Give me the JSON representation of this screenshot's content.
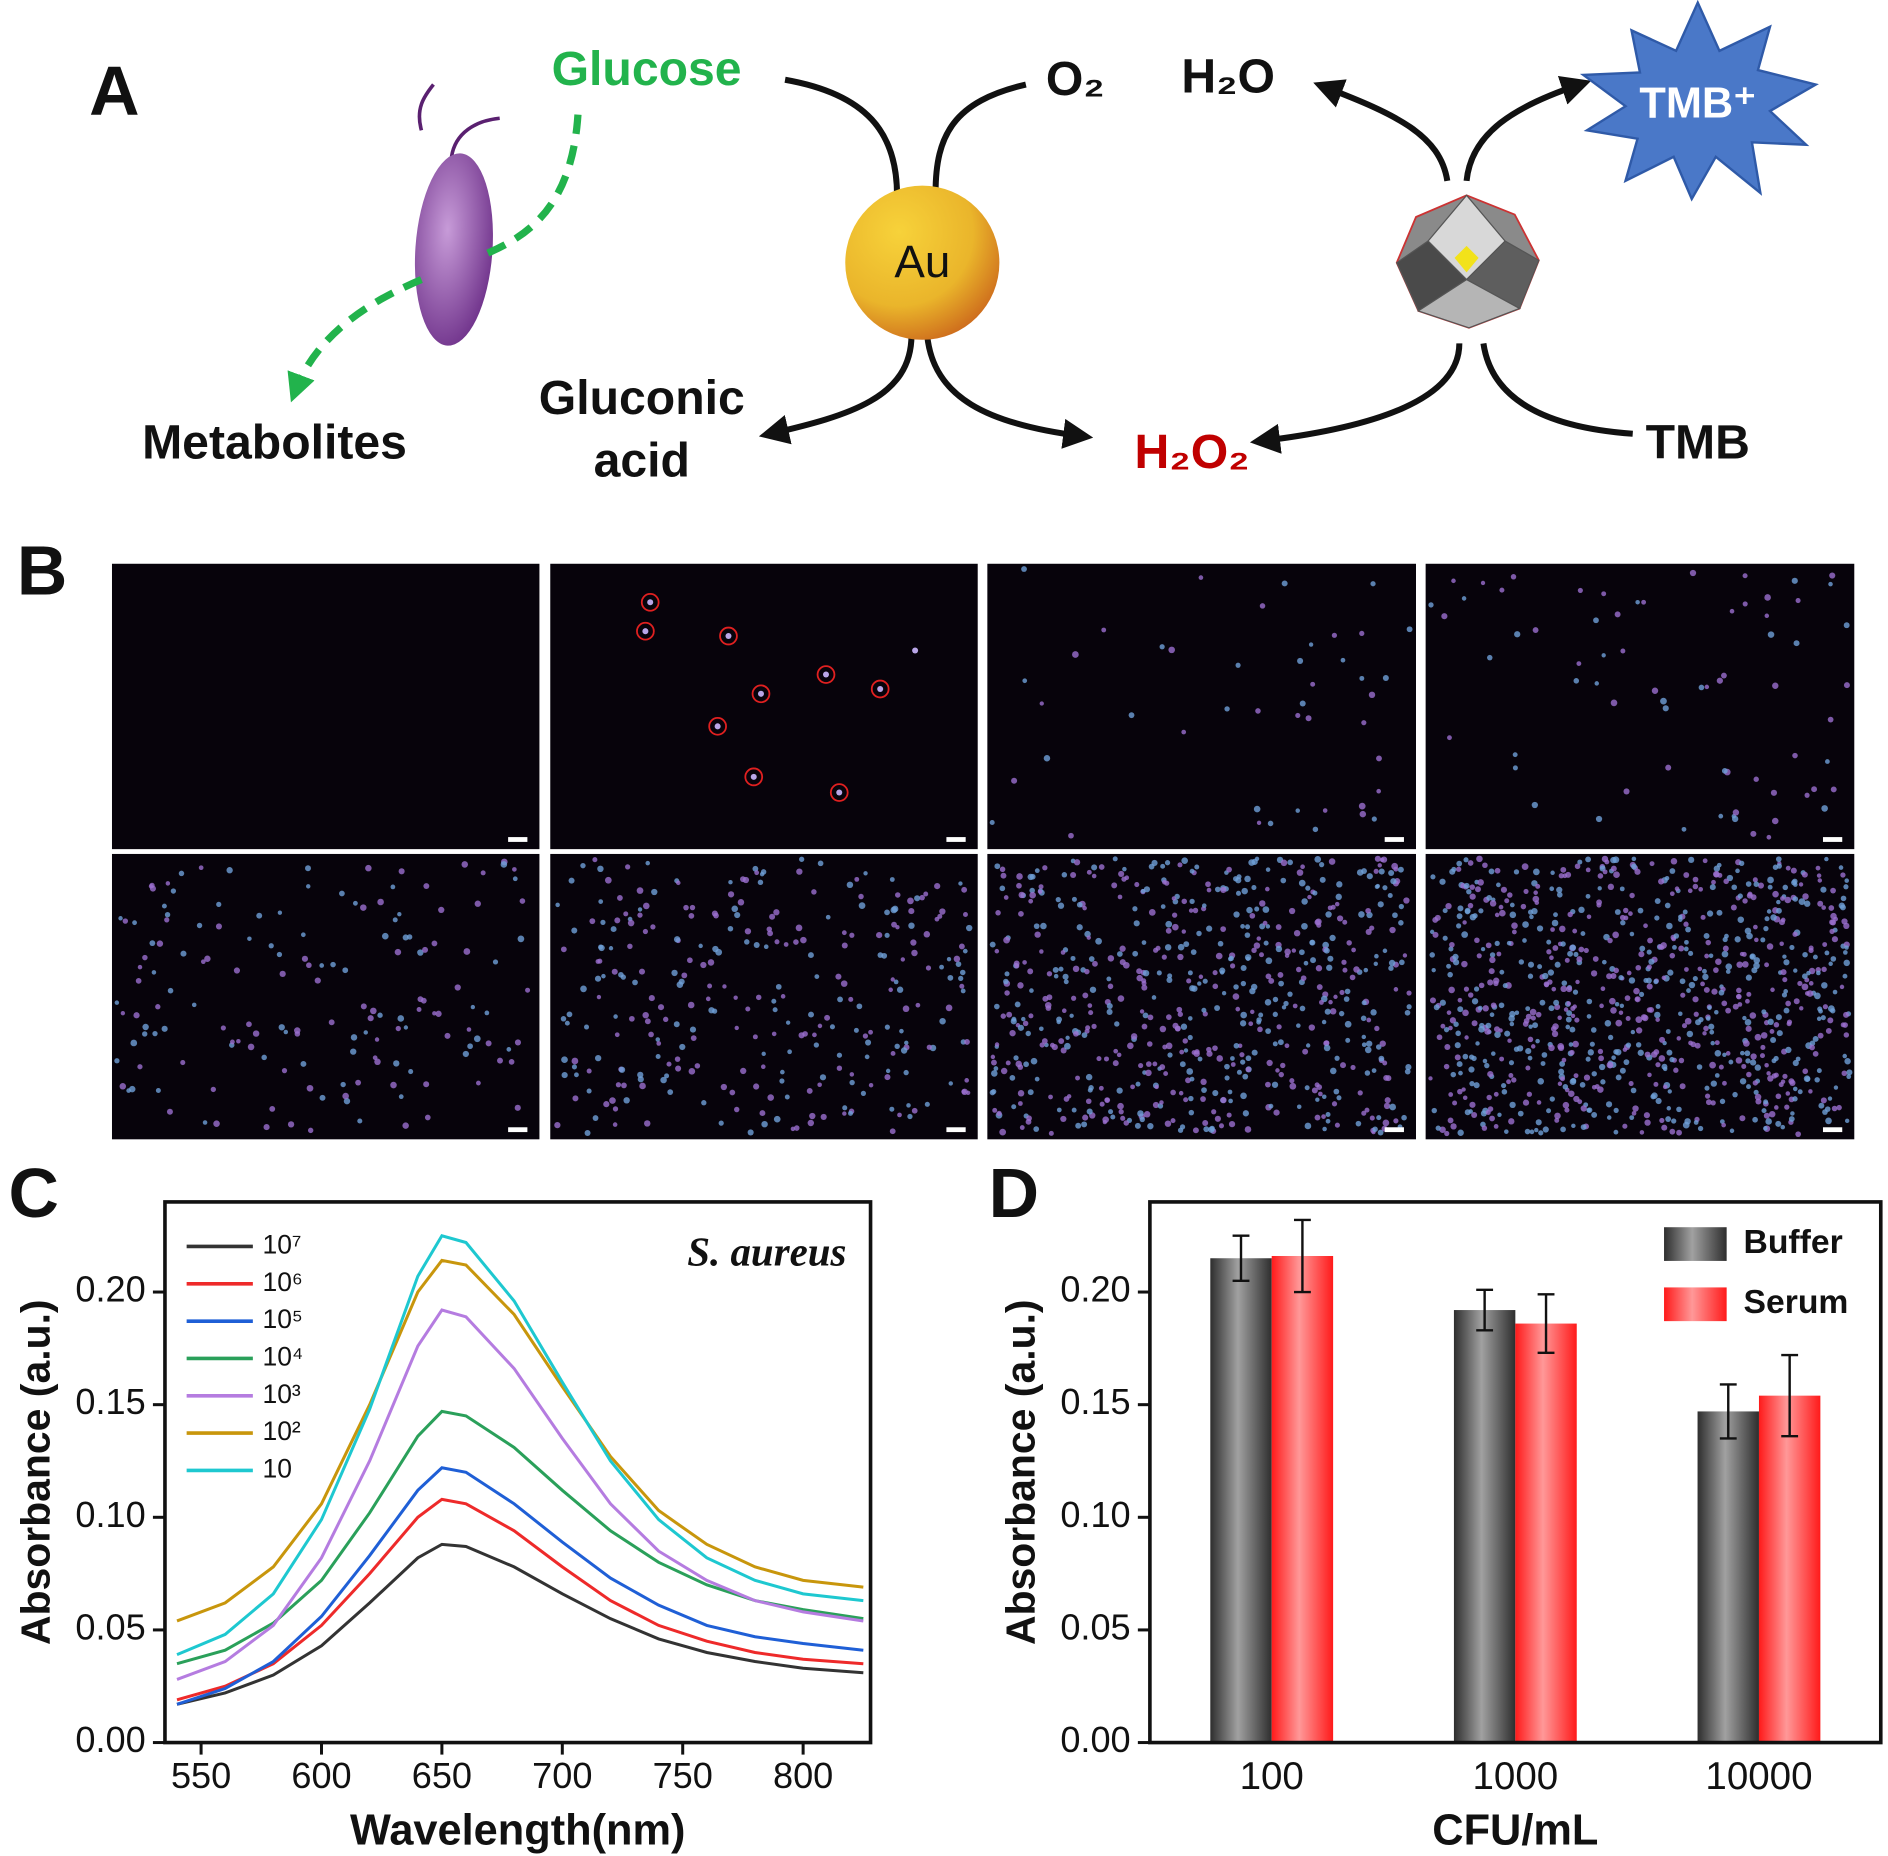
{
  "panel_labels": [
    "A",
    "B",
    "C",
    "D"
  ],
  "diagram": {
    "glucose": "Glucose",
    "o2": "O₂",
    "h2o": "H₂O",
    "tmb_ox": "TMB⁺",
    "au": "Au",
    "gluconic_acid": [
      "Gluconic",
      "acid"
    ],
    "metabolites": "Metabolites",
    "h2o2": "H₂O₂",
    "tmb": "TMB"
  },
  "chart_data": [
    {
      "type": "line",
      "x_label": "Wavelength(nm)",
      "y_label": "Absorbance (a.u.)",
      "annotation": "S. aureus",
      "x": [
        540,
        560,
        580,
        600,
        620,
        640,
        650,
        660,
        680,
        700,
        720,
        740,
        760,
        780,
        800,
        825
      ],
      "series": [
        {
          "name": "10⁷",
          "color": "#333333",
          "values": [
            0.017,
            0.022,
            0.03,
            0.043,
            0.062,
            0.082,
            0.088,
            0.087,
            0.078,
            0.066,
            0.055,
            0.046,
            0.04,
            0.036,
            0.033,
            0.031
          ]
        },
        {
          "name": "10⁶",
          "color": "#ee2a2a",
          "values": [
            0.019,
            0.025,
            0.035,
            0.052,
            0.075,
            0.1,
            0.108,
            0.106,
            0.094,
            0.078,
            0.063,
            0.052,
            0.045,
            0.04,
            0.037,
            0.035
          ]
        },
        {
          "name": "10⁵",
          "color": "#1f5fd6",
          "values": [
            0.017,
            0.024,
            0.036,
            0.056,
            0.083,
            0.112,
            0.122,
            0.12,
            0.106,
            0.089,
            0.073,
            0.061,
            0.052,
            0.047,
            0.044,
            0.041
          ]
        },
        {
          "name": "10⁴",
          "color": "#2aa05a",
          "values": [
            0.035,
            0.041,
            0.053,
            0.072,
            0.102,
            0.136,
            0.147,
            0.145,
            0.131,
            0.112,
            0.094,
            0.08,
            0.07,
            0.063,
            0.059,
            0.055
          ]
        },
        {
          "name": "10³",
          "color": "#b57ce0",
          "values": [
            0.028,
            0.036,
            0.052,
            0.082,
            0.125,
            0.176,
            0.192,
            0.189,
            0.166,
            0.135,
            0.106,
            0.085,
            0.072,
            0.063,
            0.058,
            0.054
          ]
        },
        {
          "name": "10²",
          "color": "#c8960c",
          "values": [
            0.054,
            0.062,
            0.078,
            0.106,
            0.15,
            0.2,
            0.214,
            0.212,
            0.19,
            0.158,
            0.127,
            0.103,
            0.088,
            0.078,
            0.072,
            0.069
          ]
        },
        {
          "name": "10",
          "color": "#1ec8d0",
          "values": [
            0.039,
            0.048,
            0.066,
            0.099,
            0.148,
            0.207,
            0.225,
            0.222,
            0.196,
            0.16,
            0.125,
            0.099,
            0.082,
            0.072,
            0.066,
            0.063
          ]
        }
      ],
      "xlim": [
        535,
        828
      ],
      "ylim": [
        0,
        0.24
      ],
      "xticks": [
        550,
        600,
        650,
        700,
        750,
        800
      ],
      "yticks": [
        {
          "value": 0,
          "label": "0.00"
        },
        0.05,
        {
          "value": 0.1,
          "label": "0.10"
        },
        0.15,
        {
          "value": 0.2,
          "label": "0.20"
        }
      ],
      "legend": "upper left"
    },
    {
      "type": "bar",
      "x_label": "CFU/mL",
      "y_label": "Absorbance (a.u.)",
      "categories": [
        "100",
        "1000",
        "10000"
      ],
      "series": [
        {
          "name": "Buffer",
          "color": "#2e2e2e",
          "values": [
            0.215,
            0.192,
            0.147
          ],
          "errors": [
            0.01,
            0.009,
            0.012
          ]
        },
        {
          "name": "Serum",
          "color": "#ff1a1a",
          "values": [
            0.216,
            0.186,
            0.154
          ],
          "errors": [
            0.016,
            0.013,
            0.018
          ]
        }
      ],
      "ylim": [
        0,
        0.24
      ],
      "yticks": [
        {
          "value": 0,
          "label": "0.00"
        },
        0.05,
        {
          "value": 0.1,
          "label": "0.10"
        },
        0.15,
        {
          "value": 0.2,
          "label": "0.20"
        }
      ],
      "legend": "upper right"
    }
  ]
}
